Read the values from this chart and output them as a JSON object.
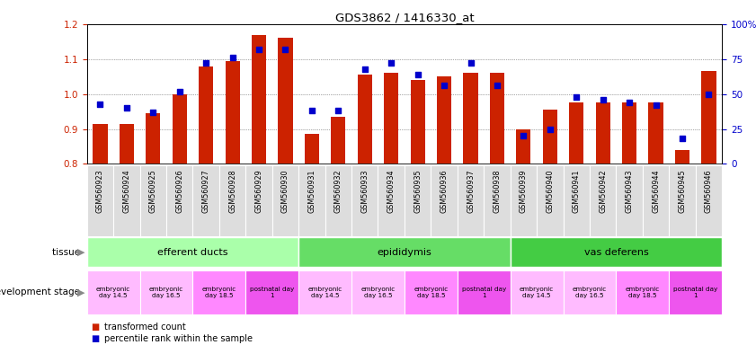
{
  "title": "GDS3862 / 1416330_at",
  "samples": [
    "GSM560923",
    "GSM560924",
    "GSM560925",
    "GSM560926",
    "GSM560927",
    "GSM560928",
    "GSM560929",
    "GSM560930",
    "GSM560931",
    "GSM560932",
    "GSM560933",
    "GSM560934",
    "GSM560935",
    "GSM560936",
    "GSM560937",
    "GSM560938",
    "GSM560939",
    "GSM560940",
    "GSM560941",
    "GSM560942",
    "GSM560943",
    "GSM560944",
    "GSM560945",
    "GSM560946"
  ],
  "bar_values": [
    0.915,
    0.915,
    0.945,
    1.0,
    1.08,
    1.095,
    1.17,
    1.16,
    0.885,
    0.935,
    1.055,
    1.06,
    1.04,
    1.05,
    1.06,
    1.06,
    0.9,
    0.955,
    0.975,
    0.975,
    0.975,
    0.975,
    0.84,
    1.065
  ],
  "percentile_values": [
    43,
    40,
    37,
    52,
    72,
    76,
    82,
    82,
    38,
    38,
    68,
    72,
    64,
    56,
    72,
    56,
    20,
    25,
    48,
    46,
    44,
    42,
    18,
    50
  ],
  "bar_color": "#CC2200",
  "percentile_color": "#0000CC",
  "ylim_left": [
    0.8,
    1.2
  ],
  "ylim_right": [
    0,
    100
  ],
  "yticks_left": [
    0.8,
    0.9,
    1.0,
    1.1,
    1.2
  ],
  "yticks_right": [
    0,
    25,
    50,
    75,
    100
  ],
  "ylabel_left_color": "#CC2200",
  "ylabel_right_color": "#0000CC",
  "tissue_groups": [
    {
      "label": "efferent ducts",
      "start": 0,
      "end": 7,
      "color": "#AAFFAA"
    },
    {
      "label": "epididymis",
      "start": 8,
      "end": 15,
      "color": "#66DD66"
    },
    {
      "label": "vas deferens",
      "start": 16,
      "end": 23,
      "color": "#44CC44"
    }
  ],
  "dev_stage_groups": [
    {
      "label": "embryonic\nday 14.5",
      "start": 0,
      "end": 1,
      "color": "#FFBBFF"
    },
    {
      "label": "embryonic\nday 16.5",
      "start": 2,
      "end": 3,
      "color": "#FFBBFF"
    },
    {
      "label": "embryonic\nday 18.5",
      "start": 4,
      "end": 5,
      "color": "#FF88FF"
    },
    {
      "label": "postnatal day\n1",
      "start": 6,
      "end": 7,
      "color": "#EE55EE"
    },
    {
      "label": "embryonic\nday 14.5",
      "start": 8,
      "end": 9,
      "color": "#FFBBFF"
    },
    {
      "label": "embryonic\nday 16.5",
      "start": 10,
      "end": 11,
      "color": "#FFBBFF"
    },
    {
      "label": "embryonic\nday 18.5",
      "start": 12,
      "end": 13,
      "color": "#FF88FF"
    },
    {
      "label": "postnatal day\n1",
      "start": 14,
      "end": 15,
      "color": "#EE55EE"
    },
    {
      "label": "embryonic\nday 14.5",
      "start": 16,
      "end": 17,
      "color": "#FFBBFF"
    },
    {
      "label": "embryonic\nday 16.5",
      "start": 18,
      "end": 19,
      "color": "#FFBBFF"
    },
    {
      "label": "embryonic\nday 18.5",
      "start": 20,
      "end": 21,
      "color": "#FF88FF"
    },
    {
      "label": "postnatal day\n1",
      "start": 22,
      "end": 23,
      "color": "#EE55EE"
    }
  ],
  "legend_items": [
    {
      "label": "transformed count",
      "color": "#CC2200"
    },
    {
      "label": "percentile rank within the sample",
      "color": "#0000CC"
    }
  ],
  "tissue_label": "tissue",
  "dev_stage_label": "development stage",
  "background_color": "#FFFFFF",
  "grid_color": "#555555",
  "bar_width": 0.55,
  "bar_bottom": 0.8,
  "xtick_bg": "#DDDDDD"
}
